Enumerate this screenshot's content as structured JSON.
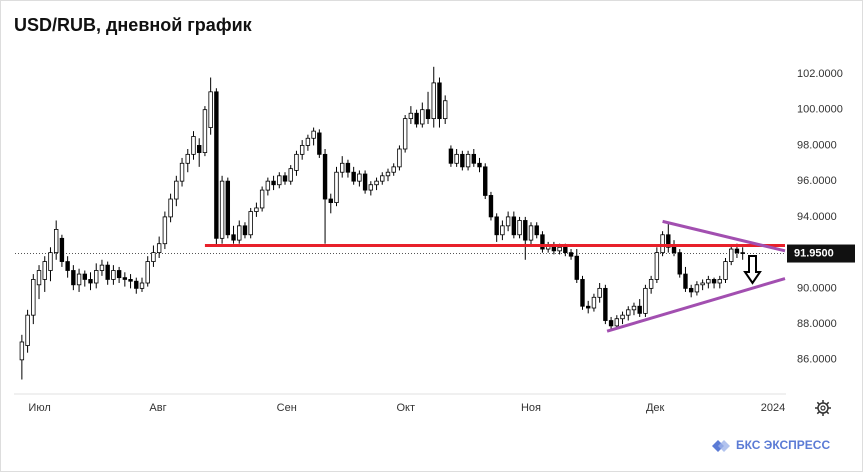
{
  "chart_data": {
    "type": "candlestick",
    "title": "USD/RUB, дневной график",
    "footer": "БКС ЭКСПРЕСС",
    "ylim": [
      84.2,
      103.9
    ],
    "yticks": [
      {
        "value": 86,
        "label": "86.0000"
      },
      {
        "value": 88,
        "label": "88.0000"
      },
      {
        "value": 90,
        "label": "90.0000"
      },
      {
        "value": 92,
        "label": "92.0000"
      },
      {
        "value": 94,
        "label": "94.0000"
      },
      {
        "value": 96,
        "label": "96.0000"
      },
      {
        "value": 98,
        "label": "98.0000"
      },
      {
        "value": 100,
        "label": "100.0000"
      },
      {
        "value": 102,
        "label": "102.0000"
      }
    ],
    "xlim": [
      -1.2,
      133.4
    ],
    "xticks": [
      {
        "value": 3.1,
        "label": "Июл"
      },
      {
        "value": 23.8,
        "label": "Авг"
      },
      {
        "value": 46.3,
        "label": "Сен"
      },
      {
        "value": 67.1,
        "label": "Окт"
      },
      {
        "value": 89,
        "label": "Ноя"
      },
      {
        "value": 110.7,
        "label": "Дек"
      },
      {
        "value": 131.3,
        "label": "2024"
      }
    ],
    "grid": false,
    "up_color": "#ffffff",
    "down_color": "#000000",
    "last_price": {
      "value": 91.95,
      "label": "91.9500"
    },
    "lines": [
      {
        "color": "#e8202a",
        "x": [
          32,
          133.4
        ],
        "y": [
          92.4,
          92.4
        ]
      },
      {
        "color": "#a24fb0",
        "x": [
          112,
          133.4
        ],
        "y": [
          93.75,
          92.1
        ]
      },
      {
        "color": "#a24fb0",
        "x": [
          102.3,
          133.4
        ],
        "y": [
          87.6,
          90.55
        ]
      }
    ],
    "ohlc": [
      [
        86.0,
        87.4,
        84.9,
        87.0
      ],
      [
        86.8,
        88.8,
        86.4,
        88.5
      ],
      [
        88.5,
        90.8,
        88.0,
        90.5
      ],
      [
        90.2,
        91.3,
        89.4,
        91.0
      ],
      [
        90.5,
        91.8,
        89.8,
        91.5
      ],
      [
        91.0,
        92.3,
        90.4,
        92.0
      ],
      [
        92.0,
        93.8,
        91.6,
        93.3
      ],
      [
        92.8,
        93.0,
        91.2,
        91.5
      ],
      [
        91.5,
        91.8,
        90.6,
        91.0
      ],
      [
        91.0,
        91.3,
        89.9,
        90.2
      ],
      [
        90.2,
        91.1,
        89.8,
        90.8
      ],
      [
        90.8,
        91.0,
        90.1,
        90.5
      ],
      [
        90.5,
        90.9,
        89.9,
        90.3
      ],
      [
        90.3,
        91.4,
        90.0,
        91.0
      ],
      [
        91.0,
        91.6,
        90.7,
        91.3
      ],
      [
        91.3,
        91.5,
        90.2,
        90.5
      ],
      [
        90.5,
        91.3,
        90.2,
        91.0
      ],
      [
        91.0,
        91.2,
        90.3,
        90.6
      ],
      [
        90.6,
        90.9,
        90.1,
        90.5
      ],
      [
        90.5,
        90.8,
        90.0,
        90.4
      ],
      [
        90.4,
        90.6,
        89.7,
        90.0
      ],
      [
        90.0,
        90.6,
        89.8,
        90.3
      ],
      [
        90.3,
        91.8,
        90.1,
        91.5
      ],
      [
        91.5,
        92.4,
        91.2,
        92.0
      ],
      [
        92.0,
        92.9,
        91.7,
        92.5
      ],
      [
        92.5,
        94.3,
        92.2,
        94.0
      ],
      [
        94.0,
        95.3,
        93.7,
        95.0
      ],
      [
        95.0,
        96.3,
        94.6,
        96.0
      ],
      [
        96.0,
        97.3,
        95.7,
        97.0
      ],
      [
        97.0,
        97.8,
        96.5,
        97.5
      ],
      [
        97.5,
        98.8,
        97.2,
        98.5
      ],
      [
        98.0,
        98.4,
        96.8,
        97.6
      ],
      [
        97.6,
        100.2,
        97.4,
        100.0
      ],
      [
        99.0,
        101.8,
        98.6,
        101.0
      ],
      [
        101.0,
        101.2,
        92.4,
        92.8
      ],
      [
        92.8,
        96.3,
        92.5,
        96.0
      ],
      [
        96.0,
        96.2,
        92.8,
        93.0
      ],
      [
        93.0,
        93.5,
        92.5,
        92.7
      ],
      [
        92.7,
        93.8,
        92.5,
        93.5
      ],
      [
        93.5,
        93.7,
        92.8,
        93.0
      ],
      [
        93.0,
        94.5,
        92.8,
        94.3
      ],
      [
        94.3,
        94.8,
        94.0,
        94.5
      ],
      [
        94.5,
        95.7,
        94.3,
        95.5
      ],
      [
        95.5,
        96.2,
        95.2,
        96.0
      ],
      [
        96.0,
        96.3,
        95.5,
        95.8
      ],
      [
        95.8,
        96.5,
        95.6,
        96.3
      ],
      [
        96.3,
        96.5,
        95.8,
        96.0
      ],
      [
        96.0,
        96.9,
        95.8,
        96.7
      ],
      [
        96.6,
        97.7,
        96.3,
        97.5
      ],
      [
        97.5,
        98.3,
        97.2,
        98.0
      ],
      [
        98.0,
        98.6,
        97.7,
        98.4
      ],
      [
        98.4,
        99.0,
        98.0,
        98.8
      ],
      [
        98.7,
        98.9,
        97.3,
        97.5
      ],
      [
        97.5,
        97.8,
        92.5,
        95.0
      ],
      [
        95.0,
        95.3,
        94.2,
        94.8
      ],
      [
        94.8,
        96.8,
        94.6,
        96.5
      ],
      [
        96.5,
        97.4,
        96.2,
        97.0
      ],
      [
        97.0,
        97.2,
        96.2,
        96.5
      ],
      [
        96.5,
        96.8,
        95.8,
        96.0
      ],
      [
        96.0,
        96.6,
        95.7,
        96.4
      ],
      [
        96.4,
        96.6,
        95.3,
        95.5
      ],
      [
        95.5,
        96.0,
        95.2,
        95.8
      ],
      [
        95.8,
        96.2,
        95.5,
        96.0
      ],
      [
        96.0,
        96.5,
        95.8,
        96.3
      ],
      [
        96.3,
        96.7,
        96.0,
        96.5
      ],
      [
        96.5,
        97.0,
        96.3,
        96.8
      ],
      [
        96.8,
        98.0,
        96.6,
        97.8
      ],
      [
        97.8,
        99.7,
        97.6,
        99.5
      ],
      [
        99.5,
        100.2,
        99.2,
        99.8
      ],
      [
        99.8,
        100.0,
        99.0,
        99.2
      ],
      [
        99.2,
        100.4,
        99.0,
        100.0
      ],
      [
        100.0,
        101.0,
        99.2,
        99.5
      ],
      [
        99.5,
        102.4,
        99.0,
        101.5
      ],
      [
        101.5,
        101.8,
        99.0,
        99.5
      ],
      [
        99.5,
        100.8,
        99.2,
        100.5
      ],
      [
        97.8,
        98.0,
        96.8,
        97.0
      ],
      [
        97.0,
        97.8,
        96.8,
        97.5
      ],
      [
        97.5,
        97.7,
        96.6,
        96.8
      ],
      [
        96.8,
        97.7,
        96.6,
        97.5
      ],
      [
        97.5,
        97.8,
        96.8,
        97.0
      ],
      [
        97.0,
        97.3,
        96.5,
        96.8
      ],
      [
        96.8,
        97.0,
        95.0,
        95.2
      ],
      [
        95.2,
        95.4,
        93.8,
        94.0
      ],
      [
        94.0,
        94.2,
        92.6,
        93.0
      ],
      [
        93.0,
        93.8,
        92.7,
        93.5
      ],
      [
        93.5,
        94.3,
        93.2,
        94.0
      ],
      [
        94.0,
        94.3,
        92.8,
        93.0
      ],
      [
        93.0,
        94.0,
        92.8,
        93.8
      ],
      [
        93.8,
        94.0,
        91.6,
        92.7
      ],
      [
        92.7,
        93.7,
        92.4,
        93.5
      ],
      [
        93.5,
        93.7,
        92.8,
        93.0
      ],
      [
        93.0,
        93.2,
        92.0,
        92.2
      ],
      [
        92.2,
        92.6,
        92.0,
        92.4
      ],
      [
        92.4,
        92.6,
        91.9,
        92.1
      ],
      [
        92.1,
        92.5,
        91.9,
        92.3
      ],
      [
        92.3,
        92.5,
        91.8,
        92.0
      ],
      [
        92.0,
        92.2,
        91.6,
        91.8
      ],
      [
        91.8,
        92.2,
        90.3,
        90.5
      ],
      [
        90.5,
        90.7,
        88.8,
        89.0
      ],
      [
        89.0,
        89.3,
        88.6,
        88.9
      ],
      [
        88.9,
        89.7,
        88.7,
        89.5
      ],
      [
        89.5,
        90.3,
        89.2,
        90.0
      ],
      [
        90.0,
        90.2,
        88.0,
        88.2
      ],
      [
        88.2,
        88.4,
        87.7,
        87.9
      ],
      [
        87.9,
        88.5,
        87.7,
        88.3
      ],
      [
        88.3,
        88.7,
        88.0,
        88.5
      ],
      [
        88.5,
        89.0,
        88.2,
        88.8
      ],
      [
        88.8,
        89.2,
        88.5,
        89.0
      ],
      [
        89.0,
        89.4,
        88.4,
        88.6
      ],
      [
        88.6,
        90.2,
        88.4,
        90.0
      ],
      [
        90.0,
        90.7,
        89.7,
        90.5
      ],
      [
        90.5,
        92.3,
        90.3,
        92.0
      ],
      [
        92.0,
        93.2,
        91.8,
        93.0
      ],
      [
        93.0,
        93.6,
        92.0,
        92.3
      ],
      [
        92.3,
        92.7,
        91.8,
        92.0
      ],
      [
        92.0,
        92.2,
        90.6,
        90.8
      ],
      [
        90.8,
        91.2,
        89.8,
        90.0
      ],
      [
        90.0,
        90.2,
        89.5,
        89.8
      ],
      [
        89.8,
        90.4,
        89.6,
        90.2
      ],
      [
        90.2,
        90.5,
        89.9,
        90.3
      ],
      [
        90.3,
        90.7,
        90.0,
        90.5
      ],
      [
        90.5,
        90.6,
        90.0,
        90.3
      ],
      [
        90.3,
        90.7,
        90.0,
        90.5
      ],
      [
        90.5,
        91.7,
        90.3,
        91.5
      ],
      [
        91.5,
        92.4,
        91.3,
        92.2
      ],
      [
        92.2,
        92.5,
        91.7,
        92.0
      ],
      [
        92.0,
        92.3,
        91.6,
        91.95
      ]
    ]
  }
}
